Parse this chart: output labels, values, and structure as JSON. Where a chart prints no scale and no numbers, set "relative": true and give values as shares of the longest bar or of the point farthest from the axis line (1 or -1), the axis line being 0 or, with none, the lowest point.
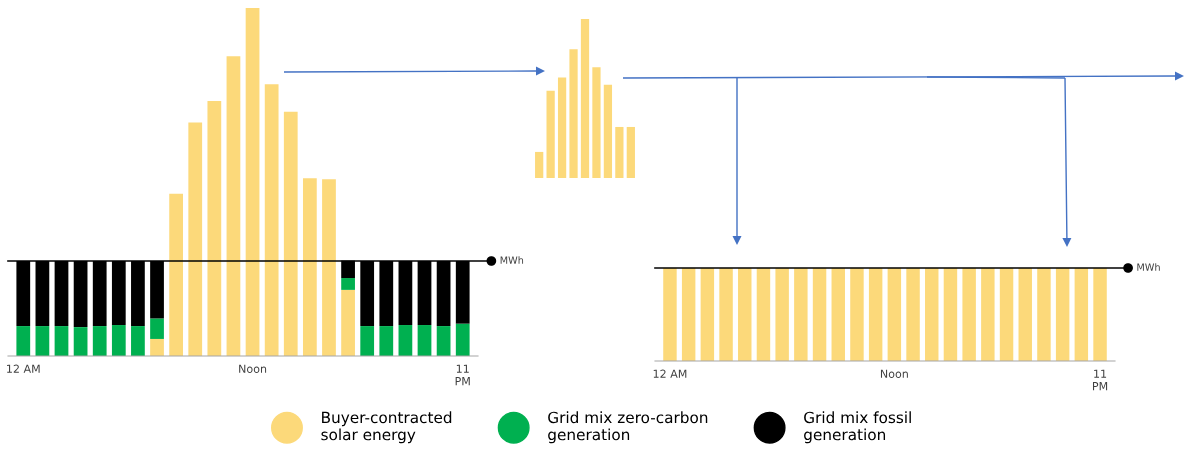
{
  "chart_data": [
    {
      "type": "bar",
      "stacked": true,
      "relative": true,
      "legend": "bottom",
      "categories": [
        "12 AM",
        null,
        null,
        null,
        null,
        null,
        null,
        null,
        null,
        null,
        null,
        null,
        "Noon",
        null,
        null,
        null,
        null,
        null,
        null,
        null,
        null,
        null,
        null,
        "11\nPM"
      ],
      "series": [
        {
          "name": "Buyer-contracted\nsolar energy",
          "color": "#fcd97a",
          "values": [
            null,
            null,
            null,
            null,
            null,
            null,
            null,
            0.049,
            0.466,
            0.671,
            0.733,
            0.861,
            1.0,
            0.781,
            0.702,
            0.511,
            0.508,
            0.19,
            null,
            null,
            null,
            null,
            null,
            null
          ]
        },
        {
          "name": "Grid mix zero-carbon\ngeneration",
          "color": "#00b050",
          "values": [
            0.086,
            0.086,
            0.086,
            0.083,
            0.086,
            0.089,
            0.086,
            0.059,
            null,
            null,
            null,
            null,
            null,
            null,
            null,
            null,
            null,
            0.034,
            0.086,
            0.086,
            0.089,
            0.089,
            0.086,
            0.093
          ]
        },
        {
          "name": "Grid mix fossil\ngeneration",
          "color": "#000000",
          "values": [
            0.187,
            0.187,
            0.187,
            0.19,
            0.187,
            0.184,
            0.187,
            0.165,
            null,
            null,
            null,
            null,
            null,
            null,
            null,
            null,
            null,
            0.05,
            0.187,
            0.187,
            0.184,
            0.184,
            0.187,
            0.18
          ]
        }
      ],
      "ref_lines": [
        {
          "axis": "y",
          "value": 0.273,
          "label": "MWh",
          "color": "#000000"
        }
      ]
    },
    {
      "type": "bar",
      "relative": true,
      "categories": [
        null,
        null,
        null,
        null,
        null,
        null,
        null,
        null,
        null
      ],
      "color": "#fcd97a",
      "values": [
        0.164,
        0.548,
        0.632,
        0.809,
        1.0,
        0.697,
        0.586,
        0.321,
        0.321
      ]
    },
    {
      "type": "bar",
      "relative": true,
      "categories": [
        "12 AM",
        null,
        null,
        null,
        null,
        null,
        null,
        null,
        null,
        null,
        null,
        null,
        "Noon",
        null,
        null,
        null,
        null,
        null,
        null,
        null,
        null,
        null,
        null,
        "11\nPM"
      ],
      "color": "#fcd97a",
      "values": [
        1,
        1,
        1,
        1,
        1,
        1,
        1,
        1,
        1,
        1,
        1,
        1,
        1,
        1,
        1,
        1,
        1,
        1,
        1,
        1,
        1,
        1,
        1,
        1
      ],
      "ref_lines": [
        {
          "axis": "y",
          "value": 1,
          "label": "MWh",
          "color": "#000000"
        }
      ]
    }
  ]
}
